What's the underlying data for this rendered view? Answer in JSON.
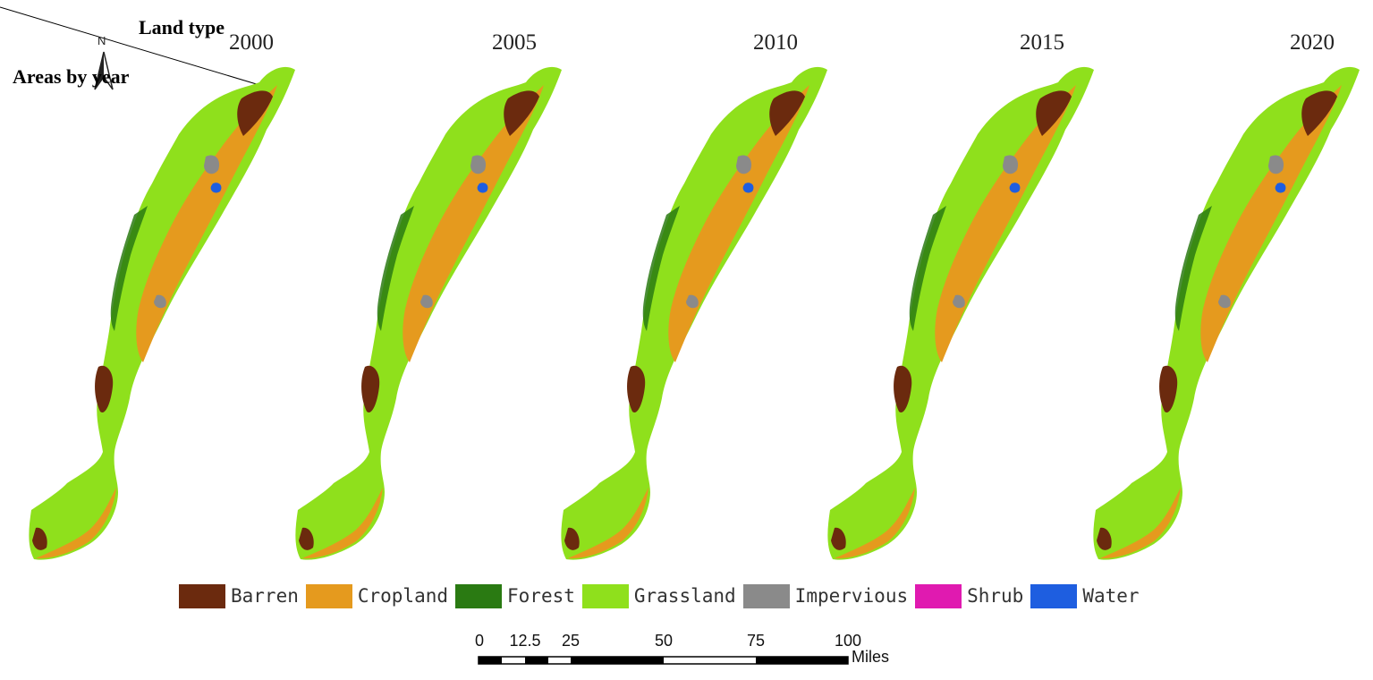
{
  "header": {
    "title_land_type": "Land type",
    "title_areas_by_year": "Areas by year",
    "north_label": "N"
  },
  "maps": [
    {
      "year": "2000"
    },
    {
      "year": "2005"
    },
    {
      "year": "2010"
    },
    {
      "year": "2015"
    },
    {
      "year": "2020"
    }
  ],
  "legend": {
    "items": [
      {
        "label": "Barren",
        "color": "#6b2a0e"
      },
      {
        "label": "Cropland",
        "color": "#e59a1e"
      },
      {
        "label": "Forest",
        "color": "#2a7a12"
      },
      {
        "label": "Grassland",
        "color": "#8fe01c"
      },
      {
        "label": "Impervious",
        "color": "#8a8a8a"
      },
      {
        "label": "Shrub",
        "color": "#e01ab0"
      },
      {
        "label": "Water",
        "color": "#1e5ee0"
      }
    ]
  },
  "scale_bar": {
    "ticks": [
      "0",
      "12.5",
      "25",
      "50",
      "75",
      "100"
    ],
    "unit": "Miles"
  }
}
